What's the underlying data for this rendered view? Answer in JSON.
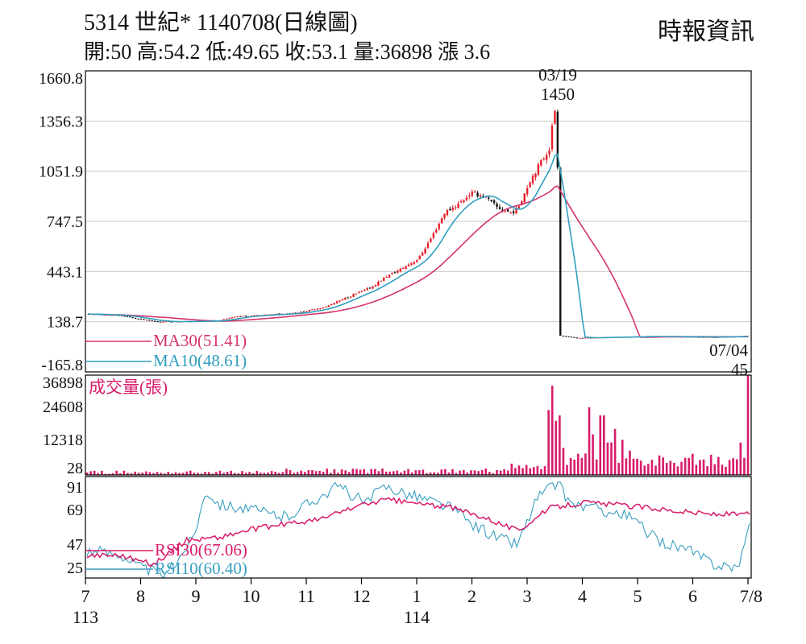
{
  "header": {
    "title": "5314  世紀* 1140708(日線圖)",
    "ohlc": "開:50 高:54.2 低:49.65 收:53.1 量:36898 漲 3.6",
    "source": "時報資訊"
  },
  "colors": {
    "up": "#e8202a",
    "down": "#111111",
    "ma30": "#d6336c",
    "ma10": "#2f9fc0",
    "volume": "#d81b6a",
    "rsi30": "#d81b6a",
    "rsi10": "#3a9fbf",
    "grid": "#c8c8c8",
    "axis": "#000000"
  },
  "chart_data": [
    {
      "type": "candlestick",
      "panel": "price",
      "ylim": [
        -165.8,
        1660.8
      ],
      "yticks": [
        "1660.8",
        "1356.3",
        "1051.9",
        "747.5",
        "443.1",
        "138.7",
        "-165.8"
      ],
      "grid": true,
      "legend_position": "bottom-left",
      "annotations": {
        "peak_date": "03/19",
        "peak_value": "1450",
        "last_date": "07/04",
        "last_value": "45"
      },
      "legend": [
        {
          "label": "MA30(51.41)",
          "color": "ma30"
        },
        {
          "label": "MA10(48.61)",
          "color": "ma10"
        }
      ],
      "x": {
        "labels": [
          "7",
          "8",
          "9",
          "10",
          "11",
          "12",
          "1",
          "2",
          "3",
          "4",
          "5",
          "6",
          "7/8"
        ],
        "sublabels": [
          {
            "under": "7",
            "text": "113"
          },
          {
            "under": "1",
            "text": "114"
          }
        ]
      },
      "anchors": [
        [
          0,
          185
        ],
        [
          0.05,
          175
        ],
        [
          0.07,
          160
        ],
        [
          0.1,
          140
        ],
        [
          0.15,
          140
        ],
        [
          0.2,
          145
        ],
        [
          0.22,
          170
        ],
        [
          0.27,
          180
        ],
        [
          0.32,
          195
        ],
        [
          0.36,
          230
        ],
        [
          0.4,
          300
        ],
        [
          0.43,
          350
        ],
        [
          0.45,
          410
        ],
        [
          0.47,
          450
        ],
        [
          0.5,
          520
        ],
        [
          0.52,
          650
        ],
        [
          0.54,
          800
        ],
        [
          0.56,
          850
        ],
        [
          0.58,
          920
        ],
        [
          0.6,
          900
        ],
        [
          0.62,
          830
        ],
        [
          0.64,
          800
        ],
        [
          0.65,
          820
        ],
        [
          0.67,
          1000
        ],
        [
          0.7,
          1200
        ],
        [
          0.705,
          1400
        ],
        [
          0.71,
          1450
        ],
        [
          0.715,
          55
        ],
        [
          0.74,
          40
        ],
        [
          0.85,
          50
        ],
        [
          0.95,
          45
        ],
        [
          0.999,
          53
        ]
      ],
      "ma10_final": 48.61,
      "ma30_final": 51.41
    },
    {
      "type": "bar",
      "panel": "volume",
      "label": "成交量(張)",
      "ylim": [
        28,
        36898
      ],
      "yticks": [
        "36898",
        "24608",
        "12318",
        "28"
      ],
      "spikes": [
        [
          0.7,
          24000
        ],
        [
          0.705,
          33000
        ],
        [
          0.71,
          20000
        ],
        [
          0.715,
          22000
        ],
        [
          0.72,
          10000
        ],
        [
          0.76,
          25000
        ],
        [
          0.765,
          15000
        ],
        [
          0.78,
          22000
        ],
        [
          0.79,
          12000
        ],
        [
          0.8,
          17000
        ],
        [
          0.81,
          13000
        ],
        [
          0.82,
          9000
        ],
        [
          0.83,
          6000
        ],
        [
          0.95,
          4000
        ],
        [
          0.99,
          12000
        ],
        [
          1.0,
          36898
        ]
      ],
      "last": 36898
    },
    {
      "type": "line",
      "panel": "rsi",
      "ylim": [
        20,
        95
      ],
      "yticks": [
        "91",
        "69",
        "47",
        "25"
      ],
      "legend": [
        {
          "label": "RSI30(67.06)",
          "color": "rsi30"
        },
        {
          "label": "RSI10(60.40)",
          "color": "rsi10"
        }
      ],
      "rsi30_anchors": [
        [
          0,
          37
        ],
        [
          0.05,
          37
        ],
        [
          0.1,
          30
        ],
        [
          0.15,
          48
        ],
        [
          0.2,
          50
        ],
        [
          0.25,
          56
        ],
        [
          0.3,
          60
        ],
        [
          0.35,
          63
        ],
        [
          0.4,
          72
        ],
        [
          0.45,
          78
        ],
        [
          0.5,
          75
        ],
        [
          0.55,
          72
        ],
        [
          0.6,
          65
        ],
        [
          0.65,
          55
        ],
        [
          0.7,
          72
        ],
        [
          0.75,
          76
        ],
        [
          0.8,
          74
        ],
        [
          0.85,
          72
        ],
        [
          0.9,
          69
        ],
        [
          0.95,
          67
        ],
        [
          1.0,
          67.06
        ]
      ],
      "rsi10_anchors": [
        [
          0,
          40
        ],
        [
          0.05,
          38
        ],
        [
          0.08,
          28
        ],
        [
          0.12,
          22
        ],
        [
          0.16,
          50
        ],
        [
          0.18,
          85
        ],
        [
          0.2,
          75
        ],
        [
          0.25,
          70
        ],
        [
          0.3,
          65
        ],
        [
          0.35,
          80
        ],
        [
          0.38,
          88
        ],
        [
          0.42,
          75
        ],
        [
          0.45,
          88
        ],
        [
          0.5,
          80
        ],
        [
          0.55,
          72
        ],
        [
          0.58,
          60
        ],
        [
          0.62,
          50
        ],
        [
          0.65,
          45
        ],
        [
          0.68,
          80
        ],
        [
          0.71,
          90
        ],
        [
          0.73,
          75
        ],
        [
          0.78,
          70
        ],
        [
          0.82,
          65
        ],
        [
          0.86,
          48
        ],
        [
          0.9,
          42
        ],
        [
          0.95,
          30
        ],
        [
          0.985,
          28
        ],
        [
          1.0,
          60.4
        ]
      ]
    }
  ]
}
